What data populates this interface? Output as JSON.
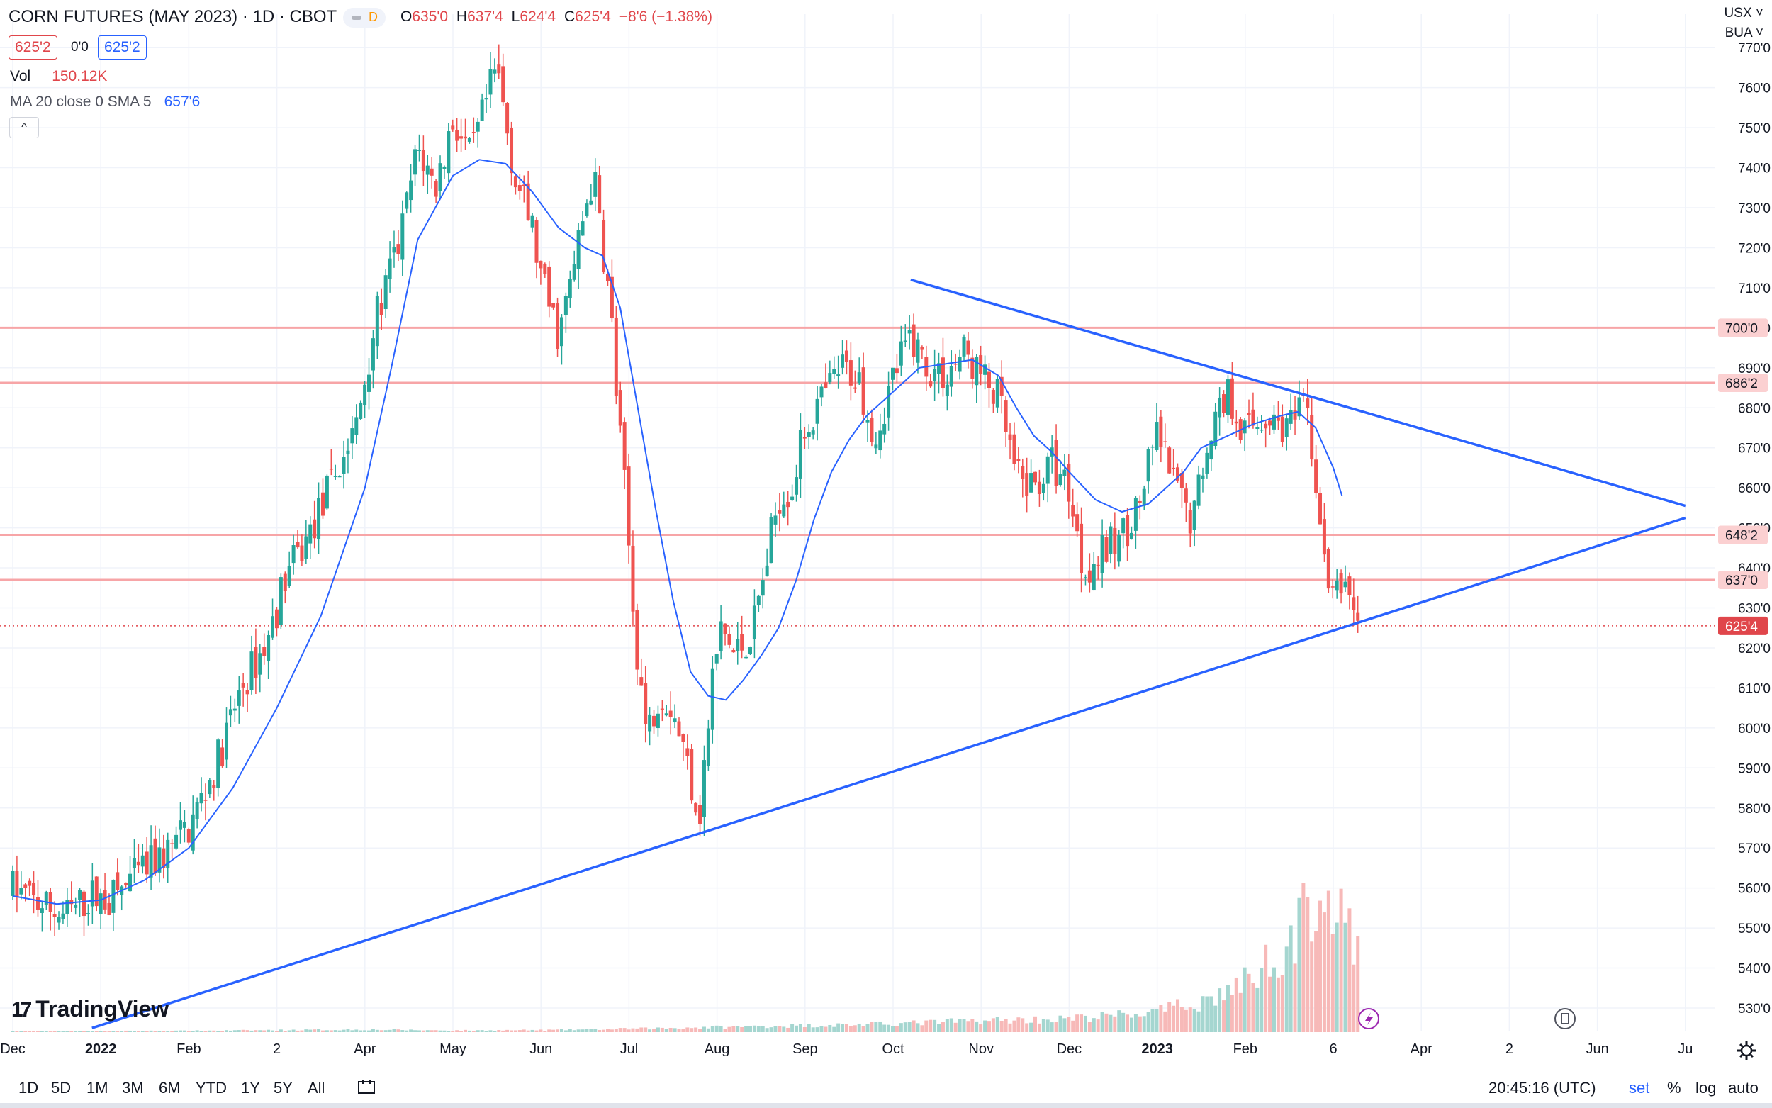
{
  "header": {
    "title": "CORN FUTURES (MAY 2023) · 1D · CBOT",
    "badge": "D",
    "ohlc": [
      {
        "k": "O",
        "v": "635'0"
      },
      {
        "k": "H",
        "v": "637'4"
      },
      {
        "k": "L",
        "v": "624'4"
      },
      {
        "k": "C",
        "v": "625'4"
      },
      {
        "k": "",
        "v": "−8'6 (−1.38%)"
      }
    ],
    "sell_price": "625'2",
    "spread": "0'0",
    "buy_price": "625'2",
    "vol_label": "Vol",
    "vol_value": "150.12K",
    "ma_label": "MA 20 close 0 SMA 5",
    "ma_value": "657'6",
    "collapse": "^"
  },
  "axis_top": {
    "currency": "USX ˅",
    "unit": "BUA ˅"
  },
  "chart_data": {
    "type": "candlestick",
    "ylim": [
      525,
      773
    ],
    "price_ticks": [
      "530'0",
      "540'0",
      "550'0",
      "560'0",
      "570'0",
      "580'0",
      "590'0",
      "600'0",
      "610'0",
      "620'0",
      "630'0",
      "640'0",
      "650'0",
      "660'0",
      "670'0",
      "680'0",
      "690'0",
      "700'0",
      "710'0",
      "720'0",
      "730'0",
      "740'0",
      "750'0",
      "760'0",
      "770'0"
    ],
    "x_ticks": [
      {
        "label": "Dec",
        "month": 0
      },
      {
        "label": "2022",
        "month": 1,
        "bold": true
      },
      {
        "label": "Feb",
        "month": 2
      },
      {
        "label": "2",
        "month": 3
      },
      {
        "label": "Apr",
        "month": 4
      },
      {
        "label": "May",
        "month": 5
      },
      {
        "label": "Jun",
        "month": 6
      },
      {
        "label": "Jul",
        "month": 7
      },
      {
        "label": "Aug",
        "month": 8
      },
      {
        "label": "Sep",
        "month": 9
      },
      {
        "label": "Oct",
        "month": 10
      },
      {
        "label": "Nov",
        "month": 11
      },
      {
        "label": "Dec",
        "month": 12
      },
      {
        "label": "2023",
        "month": 13,
        "bold": true
      },
      {
        "label": "Feb",
        "month": 14
      },
      {
        "label": "6",
        "month": 15
      },
      {
        "label": "Apr",
        "month": 16
      },
      {
        "label": "2",
        "month": 17
      },
      {
        "label": "Jun",
        "month": 18
      },
      {
        "label": "Ju",
        "month": 19
      }
    ],
    "levels": [
      {
        "price": 700.0,
        "label": "700'0"
      },
      {
        "price": 686.25,
        "label": "686'2"
      },
      {
        "price": 648.25,
        "label": "648'2"
      },
      {
        "price": 637.0,
        "label": "637'0"
      }
    ],
    "last_price": {
      "price": 625.5,
      "label": "625'4"
    },
    "trendlines": [
      {
        "from": {
          "month": 10.2,
          "price": 712
        },
        "to": {
          "month": 19.0,
          "price": 655.5
        }
      },
      {
        "from": {
          "month": 0.9,
          "price": 525
        },
        "to": {
          "month": 19.0,
          "price": 652.5
        }
      }
    ],
    "price_path": [
      [
        0.0,
        560
      ],
      [
        0.3,
        556
      ],
      [
        0.6,
        553
      ],
      [
        0.9,
        558
      ],
      [
        1.1,
        557
      ],
      [
        1.4,
        563
      ],
      [
        1.7,
        568
      ],
      [
        2.0,
        575
      ],
      [
        2.3,
        590
      ],
      [
        2.6,
        610
      ],
      [
        2.9,
        622
      ],
      [
        3.1,
        638
      ],
      [
        3.3,
        645
      ],
      [
        3.6,
        660
      ],
      [
        3.9,
        675
      ],
      [
        4.1,
        700
      ],
      [
        4.4,
        722
      ],
      [
        4.6,
        745
      ],
      [
        4.8,
        735
      ],
      [
        5.0,
        752
      ],
      [
        5.2,
        742
      ],
      [
        5.4,
        758
      ],
      [
        5.5,
        765
      ],
      [
        5.7,
        738
      ],
      [
        5.9,
        725
      ],
      [
        6.0,
        712
      ],
      [
        6.2,
        698
      ],
      [
        6.35,
        712
      ],
      [
        6.5,
        730
      ],
      [
        6.6,
        738
      ],
      [
        6.8,
        703
      ],
      [
        6.85,
        685
      ],
      [
        6.95,
        660
      ],
      [
        7.05,
        628
      ],
      [
        7.2,
        598
      ],
      [
        7.35,
        610
      ],
      [
        7.5,
        605
      ],
      [
        7.65,
        592
      ],
      [
        7.8,
        578
      ],
      [
        7.95,
        612
      ],
      [
        8.05,
        625
      ],
      [
        8.2,
        618
      ],
      [
        8.4,
        624
      ],
      [
        8.55,
        640
      ],
      [
        8.7,
        658
      ],
      [
        8.85,
        660
      ],
      [
        9.0,
        675
      ],
      [
        9.2,
        682
      ],
      [
        9.4,
        690
      ],
      [
        9.6,
        688
      ],
      [
        9.8,
        673
      ],
      [
        10.0,
        688
      ],
      [
        10.2,
        698
      ],
      [
        10.4,
        690
      ],
      [
        10.6,
        688
      ],
      [
        10.8,
        694
      ],
      [
        11.0,
        688
      ],
      [
        11.2,
        682
      ],
      [
        11.4,
        662
      ],
      [
        11.6,
        660
      ],
      [
        11.8,
        666
      ],
      [
        12.0,
        660
      ],
      [
        12.15,
        640
      ],
      [
        12.3,
        642
      ],
      [
        12.6,
        648
      ],
      [
        12.8,
        656
      ],
      [
        13.0,
        674
      ],
      [
        13.2,
        660
      ],
      [
        13.4,
        652
      ],
      [
        13.6,
        675
      ],
      [
        13.8,
        684
      ],
      [
        14.0,
        674
      ],
      [
        14.2,
        678
      ],
      [
        14.5,
        675
      ],
      [
        14.7,
        680
      ],
      [
        14.8,
        662
      ],
      [
        14.9,
        640
      ],
      [
        15.0,
        632
      ],
      [
        15.15,
        637
      ],
      [
        15.3,
        625.5
      ]
    ],
    "ma_path": [
      [
        0.0,
        558
      ],
      [
        0.5,
        556
      ],
      [
        1.0,
        557
      ],
      [
        1.5,
        562
      ],
      [
        2.0,
        570
      ],
      [
        2.5,
        585
      ],
      [
        3.0,
        605
      ],
      [
        3.5,
        628
      ],
      [
        4.0,
        660
      ],
      [
        4.3,
        690
      ],
      [
        4.6,
        722
      ],
      [
        5.0,
        738
      ],
      [
        5.3,
        742
      ],
      [
        5.6,
        741
      ],
      [
        5.9,
        734
      ],
      [
        6.2,
        725
      ],
      [
        6.5,
        720
      ],
      [
        6.7,
        718
      ],
      [
        6.9,
        705
      ],
      [
        7.1,
        680
      ],
      [
        7.3,
        655
      ],
      [
        7.5,
        632
      ],
      [
        7.7,
        614
      ],
      [
        7.9,
        608
      ],
      [
        8.1,
        607
      ],
      [
        8.3,
        612
      ],
      [
        8.5,
        618
      ],
      [
        8.7,
        625
      ],
      [
        8.9,
        637
      ],
      [
        9.1,
        652
      ],
      [
        9.3,
        664
      ],
      [
        9.5,
        672
      ],
      [
        9.7,
        678
      ],
      [
        9.9,
        682
      ],
      [
        10.1,
        686
      ],
      [
        10.3,
        690
      ],
      [
        10.6,
        691
      ],
      [
        10.9,
        692
      ],
      [
        11.2,
        688
      ],
      [
        11.4,
        680
      ],
      [
        11.6,
        673
      ],
      [
        11.8,
        669
      ],
      [
        12.0,
        664
      ],
      [
        12.3,
        657
      ],
      [
        12.6,
        654
      ],
      [
        12.9,
        656
      ],
      [
        13.1,
        660
      ],
      [
        13.3,
        664
      ],
      [
        13.5,
        670
      ],
      [
        13.8,
        673
      ],
      [
        14.1,
        676
      ],
      [
        14.4,
        678
      ],
      [
        14.6,
        679
      ],
      [
        14.8,
        675
      ],
      [
        15.0,
        665
      ],
      [
        15.1,
        658
      ]
    ],
    "volume_path": [
      [
        0.0,
        0.005
      ],
      [
        2.0,
        0.008
      ],
      [
        3.0,
        0.012
      ],
      [
        4.0,
        0.015
      ],
      [
        5.0,
        0.01
      ],
      [
        6.0,
        0.012
      ],
      [
        7.0,
        0.02
      ],
      [
        8.0,
        0.03
      ],
      [
        9.0,
        0.04
      ],
      [
        10.0,
        0.05
      ],
      [
        11.0,
        0.07
      ],
      [
        12.0,
        0.08
      ],
      [
        13.0,
        0.12
      ],
      [
        13.6,
        0.2
      ],
      [
        14.0,
        0.3
      ],
      [
        14.3,
        0.45
      ],
      [
        14.6,
        0.6
      ],
      [
        14.8,
        0.88
      ],
      [
        15.0,
        0.75
      ],
      [
        15.3,
        0.45
      ]
    ]
  },
  "logo": {
    "text": "TradingView"
  },
  "toolbar": {
    "timeframes": [
      "1D",
      "5D",
      "1M",
      "3M",
      "6M",
      "YTD",
      "1Y",
      "5Y",
      "All"
    ],
    "clock": "20:45:16 (UTC)",
    "options": [
      "set",
      "%",
      "log",
      "auto"
    ]
  }
}
